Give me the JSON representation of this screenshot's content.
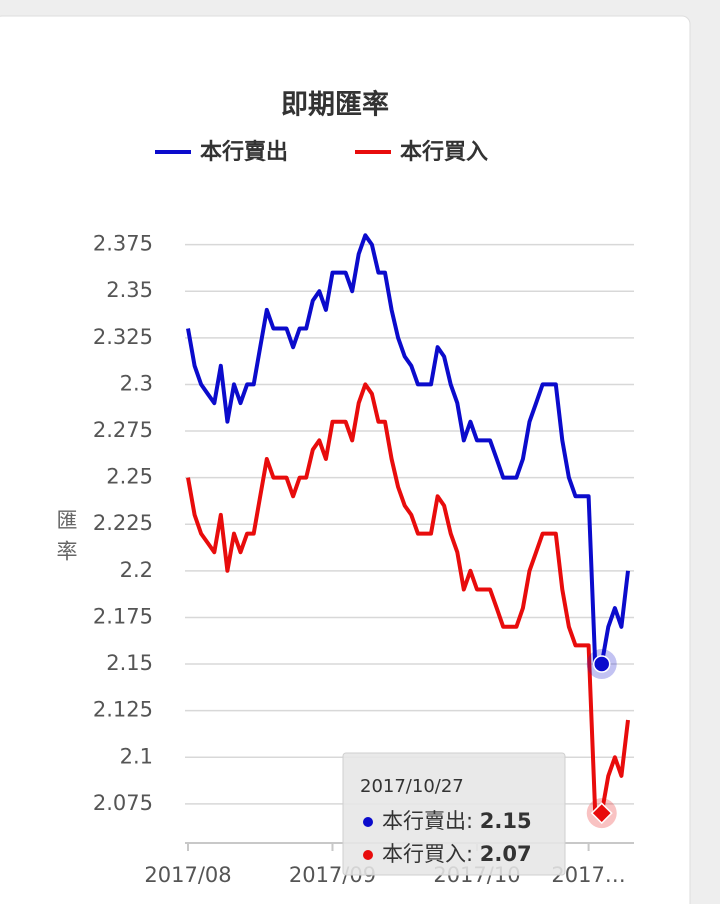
{
  "chart_data": {
    "type": "line",
    "title": "即期匯率",
    "y_label": "匯率",
    "categories": [
      "2017/08",
      null,
      null,
      null,
      null,
      null,
      null,
      null,
      null,
      null,
      null,
      null,
      null,
      null,
      null,
      null,
      null,
      null,
      null,
      null,
      null,
      null,
      "2017/09",
      null,
      null,
      null,
      null,
      null,
      null,
      null,
      null,
      null,
      null,
      null,
      null,
      null,
      null,
      null,
      null,
      null,
      null,
      null,
      null,
      null,
      "2017/10",
      null,
      null,
      null,
      null,
      null,
      null,
      null,
      null,
      null,
      null,
      null,
      null,
      null,
      null,
      null,
      null,
      "2017…",
      null,
      null,
      null,
      null,
      null,
      null
    ],
    "series": [
      {
        "name": "本行賣出",
        "color": "#0b0bcc",
        "values": [
          2.33,
          2.31,
          2.3,
          2.295,
          2.29,
          2.31,
          2.28,
          2.3,
          2.29,
          2.3,
          2.3,
          2.32,
          2.34,
          2.33,
          2.33,
          2.33,
          2.32,
          2.33,
          2.33,
          2.345,
          2.35,
          2.34,
          2.36,
          2.36,
          2.36,
          2.35,
          2.37,
          2.38,
          2.375,
          2.36,
          2.36,
          2.34,
          2.325,
          2.315,
          2.31,
          2.3,
          2.3,
          2.3,
          2.32,
          2.315,
          2.3,
          2.29,
          2.27,
          2.28,
          2.27,
          2.27,
          2.27,
          2.26,
          2.25,
          2.25,
          2.25,
          2.26,
          2.28,
          2.29,
          2.3,
          2.3,
          2.3,
          2.27,
          2.25,
          2.24,
          2.24,
          2.24,
          2.15,
          2.15,
          2.17,
          2.18,
          2.17,
          2.2
        ]
      },
      {
        "name": "本行買入",
        "color": "#e80c0c",
        "values": [
          2.25,
          2.23,
          2.22,
          2.215,
          2.21,
          2.23,
          2.2,
          2.22,
          2.21,
          2.22,
          2.22,
          2.24,
          2.26,
          2.25,
          2.25,
          2.25,
          2.24,
          2.25,
          2.25,
          2.265,
          2.27,
          2.26,
          2.28,
          2.28,
          2.28,
          2.27,
          2.29,
          2.3,
          2.295,
          2.28,
          2.28,
          2.26,
          2.245,
          2.235,
          2.23,
          2.22,
          2.22,
          2.22,
          2.24,
          2.235,
          2.22,
          2.21,
          2.19,
          2.2,
          2.19,
          2.19,
          2.19,
          2.18,
          2.17,
          2.17,
          2.17,
          2.18,
          2.2,
          2.21,
          2.22,
          2.22,
          2.22,
          2.19,
          2.17,
          2.16,
          2.16,
          2.16,
          2.07,
          2.07,
          2.09,
          2.1,
          2.09,
          2.12
        ]
      }
    ],
    "ylim": [
      2.054,
      2.385
    ],
    "yticks": [
      2.075,
      2.1,
      2.125,
      2.15,
      2.175,
      2.2,
      2.225,
      2.25,
      2.275,
      2.3,
      2.325,
      2.35,
      2.375
    ],
    "grid": true,
    "legend": "top",
    "tooltip": {
      "date": "2017/10/27",
      "index": 63
    }
  }
}
